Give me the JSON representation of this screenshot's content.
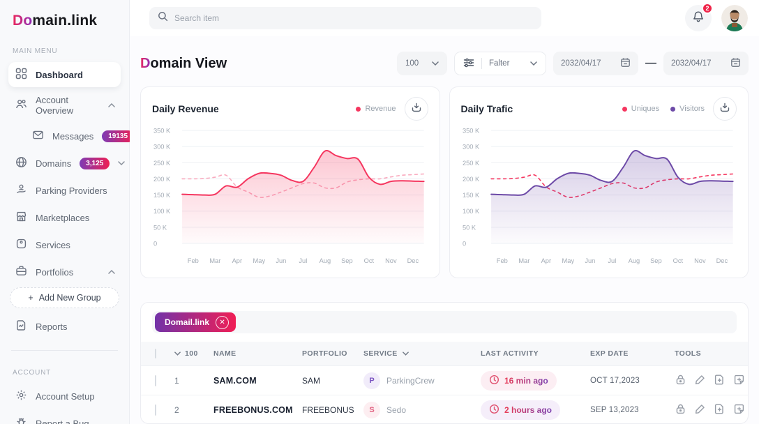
{
  "brand": {
    "logo_accent": "Do",
    "logo_rest": "main.link"
  },
  "topbar": {
    "search_placeholder": "Search item",
    "notification_count": "2"
  },
  "sidebar": {
    "main_menu_label": "MAIN MENU",
    "account_label": "ACCOUNT",
    "items": [
      {
        "label": "Dashboard",
        "icon": "dashboard-grid-icon",
        "active": true
      },
      {
        "label": "Account Overview",
        "icon": "users-icon",
        "chevron": "up"
      },
      {
        "label": "Messages",
        "icon": "mail-icon",
        "badge": "19135"
      },
      {
        "label": "Domains",
        "icon": "globe-icon",
        "badge": "3,125",
        "chevron": "down"
      },
      {
        "label": "Parking Providers",
        "icon": "parking-provider-icon"
      },
      {
        "label": "Marketplaces",
        "icon": "storefront-icon"
      },
      {
        "label": "Services",
        "icon": "services-box-icon"
      },
      {
        "label": "Portfolios",
        "icon": "briefcase-icon",
        "chevron": "up"
      },
      {
        "label": "Add New Group",
        "plus": "+"
      },
      {
        "label": "Reports",
        "icon": "report-icon"
      }
    ],
    "account_items": [
      {
        "label": "Account Setup",
        "icon": "gear-icon"
      },
      {
        "label": "Report a Bug",
        "icon": "bug-icon"
      }
    ]
  },
  "header": {
    "title_accent": "D",
    "title_rest": "omain View",
    "page_size": "100",
    "filter_label": "Falter",
    "date_from": "2032/04/17",
    "date_separator": "—",
    "date_to": "2032/04/17"
  },
  "charts": [
    {
      "legend": [
        {
          "label": "Revenue",
          "color": "#f5365f"
        }
      ]
    },
    {
      "legend": [
        {
          "label": "Uniques",
          "color": "#f5365f"
        },
        {
          "label": "Visitors",
          "color": "#6d4aa7"
        }
      ]
    }
  ],
  "chart_data": [
    {
      "type": "line",
      "title": "Daily Revenue",
      "categories": [
        "Feb",
        "Mar",
        "Apr",
        "May",
        "Jun",
        "Jul",
        "Aug",
        "Sep",
        "Oct",
        "Nov",
        "Dec"
      ],
      "ylim": [
        0,
        350
      ],
      "ytick_labels": [
        "350 K",
        "300 K",
        "250 K",
        "200 K",
        "150 K",
        "100 K",
        "50 K",
        "0"
      ],
      "unit": "K",
      "grid": true,
      "legend_position": "top-right",
      "series": [
        {
          "name": "Revenue",
          "line": "solid",
          "area": true,
          "color": "#f5365f",
          "values": [
            152,
            151,
            150,
            152,
            178,
            174,
            200,
            217,
            217,
            211,
            195,
            192,
            235,
            286,
            272,
            263,
            261,
            205,
            183,
            192,
            194,
            193,
            192
          ]
        },
        {
          "name": "Revenue",
          "line": "dashed",
          "area": false,
          "color": "#f9aabe",
          "values": [
            200,
            200,
            201,
            205,
            211,
            175,
            159,
            143,
            147,
            159,
            172,
            185,
            187,
            172,
            172,
            190,
            197,
            200,
            200,
            206,
            211,
            213,
            215
          ]
        }
      ]
    },
    {
      "type": "line",
      "title": "Daily Trafic",
      "categories": [
        "Feb",
        "Mar",
        "Apr",
        "May",
        "Jun",
        "Jul",
        "Aug",
        "Sep",
        "Oct",
        "Nov",
        "Dec"
      ],
      "ylim": [
        0,
        350
      ],
      "ytick_labels": [
        "350 K",
        "300 K",
        "250 K",
        "200 K",
        "150 K",
        "100 K",
        "50 K",
        "0"
      ],
      "unit": "K",
      "grid": true,
      "legend_position": "top-right",
      "series": [
        {
          "name": "Visitors",
          "line": "solid",
          "area": true,
          "color": "#6d4aa7",
          "values": [
            152,
            151,
            150,
            152,
            178,
            174,
            200,
            217,
            217,
            211,
            195,
            192,
            235,
            286,
            272,
            263,
            261,
            205,
            183,
            192,
            194,
            193,
            192
          ]
        },
        {
          "name": "Uniques",
          "line": "dashed",
          "area": false,
          "color": "#f5365f",
          "values": [
            200,
            200,
            201,
            205,
            211,
            175,
            159,
            143,
            147,
            159,
            172,
            185,
            187,
            172,
            172,
            190,
            197,
            200,
            200,
            206,
            211,
            213,
            215
          ]
        }
      ]
    }
  ],
  "table": {
    "chip_label": "Domail.link",
    "select_count": "100",
    "columns": {
      "name": "NAME",
      "portfolio": "PORTFOLIO",
      "service": "SERVICE",
      "activity": "LAST ACTIVITY",
      "exp": "EXP DATE",
      "tools": "TOOLS"
    },
    "rows": [
      {
        "num": "1",
        "name": "SAM.COM",
        "portfolio": "SAM",
        "service_initial": "P",
        "service": "ParkingCrew",
        "activity": "16 min ago",
        "exp": "OCT 17,2023"
      },
      {
        "num": "2",
        "name": "FREEBONUS.COM",
        "portfolio": "FREEBONUS",
        "service_initial": "S",
        "service": "Sedo",
        "activity": "2 hours ago",
        "exp": "SEP 13,2023"
      }
    ]
  },
  "colors": {
    "accent_gradient_from": "#ee2a5b",
    "accent_gradient_to": "#8d2bb8",
    "badge_gradient_from": "#7d3bb5",
    "badge_gradient_to": "#ef2053",
    "revenue_red": "#f5365f",
    "visitors_purple": "#6d4aa7",
    "notification_red": "#ef2449"
  }
}
